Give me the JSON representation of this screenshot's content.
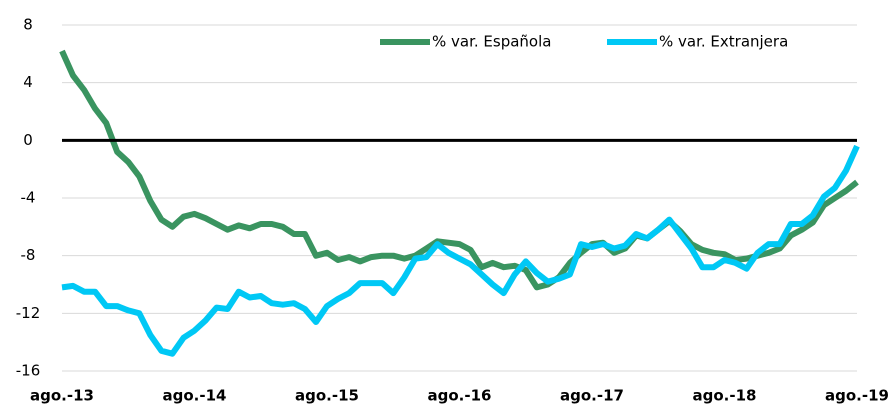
{
  "chart_data": {
    "type": "line",
    "categories": [
      "ago.-13",
      null,
      null,
      null,
      null,
      null,
      null,
      null,
      null,
      null,
      null,
      null,
      "ago.-14",
      null,
      null,
      null,
      null,
      null,
      null,
      null,
      null,
      null,
      null,
      null,
      "ago.-15",
      null,
      null,
      null,
      null,
      null,
      null,
      null,
      null,
      null,
      null,
      null,
      "ago.-16",
      null,
      null,
      null,
      null,
      null,
      null,
      null,
      null,
      null,
      null,
      null,
      "ago.-17",
      null,
      null,
      null,
      null,
      null,
      null,
      null,
      null,
      null,
      null,
      null,
      "ago.-18",
      null,
      null,
      null,
      null,
      null,
      null,
      null,
      null,
      null,
      null,
      null,
      "ago.-19"
    ],
    "series": [
      {
        "name": "% var. Española",
        "color": "#3a9460",
        "values": [
          6.2,
          4.5,
          3.5,
          2.2,
          1.2,
          -0.8,
          -1.5,
          -2.5,
          -4.2,
          -5.5,
          -6.0,
          -5.3,
          -5.1,
          -5.4,
          -5.8,
          -6.2,
          -5.9,
          -6.1,
          -5.8,
          -5.8,
          -6.0,
          -6.5,
          -6.5,
          -8.0,
          -7.8,
          -8.3,
          -8.1,
          -8.4,
          -8.1,
          -8.0,
          -8.0,
          -8.2,
          -8.0,
          -7.5,
          -7.0,
          -7.1,
          -7.2,
          -7.6,
          -8.8,
          -8.5,
          -8.8,
          -8.7,
          -9.0,
          -10.2,
          -10.0,
          -9.5,
          -8.5,
          -7.8,
          -7.2,
          -7.1,
          -7.8,
          -7.5,
          -6.6,
          -6.8,
          -6.2,
          -5.6,
          -6.3,
          -7.2,
          -7.6,
          -7.8,
          -7.9,
          -8.3,
          -8.2,
          -8.0,
          -7.8,
          -7.5,
          -6.6,
          -6.2,
          -5.7,
          -4.5,
          -4.0,
          -3.5,
          -2.9
        ]
      },
      {
        "name": "% var. Extranjera",
        "color": "#00c8f5",
        "values": [
          -10.2,
          -10.1,
          -10.5,
          -10.5,
          -11.5,
          -11.5,
          -11.8,
          -12.0,
          -13.5,
          -14.6,
          -14.8,
          -13.7,
          -13.2,
          -12.5,
          -11.6,
          -11.7,
          -10.5,
          -10.9,
          -10.8,
          -11.3,
          -11.4,
          -11.3,
          -11.7,
          -12.6,
          -11.5,
          -11.0,
          -10.6,
          -9.9,
          -9.9,
          -9.9,
          -10.6,
          -9.5,
          -8.2,
          -8.1,
          -7.2,
          -7.8,
          -8.2,
          -8.6,
          -9.3,
          -10.0,
          -10.6,
          -9.3,
          -8.4,
          -9.2,
          -9.8,
          -9.6,
          -9.3,
          -7.2,
          -7.4,
          -7.2,
          -7.5,
          -7.3,
          -6.5,
          -6.8,
          -6.2,
          -5.5,
          -6.5,
          -7.5,
          -8.8,
          -8.8,
          -8.3,
          -8.5,
          -8.9,
          -7.8,
          -7.2,
          -7.2,
          -5.8,
          -5.8,
          -5.2,
          -3.9,
          -3.3,
          -2.1,
          -0.4
        ]
      }
    ],
    "ylim": [
      -16,
      8
    ],
    "yticks": [
      -16,
      -12,
      -8,
      -4,
      0,
      4,
      8
    ],
    "grid": true,
    "legend": "top-right"
  }
}
